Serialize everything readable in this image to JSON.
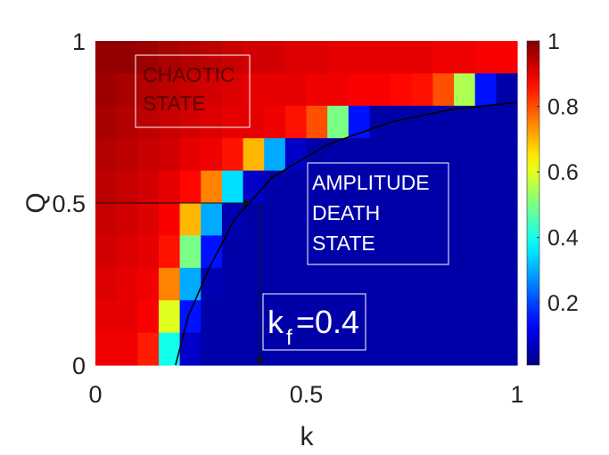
{
  "chart_data": {
    "type": "heatmap",
    "x_label": "k",
    "y_label": "Q",
    "xlim": [
      0,
      1
    ],
    "ylim": [
      0,
      1
    ],
    "xticks": [
      0,
      0.5,
      1
    ],
    "yticks": [
      0,
      0.5,
      1
    ],
    "zlim": [
      0.01,
      1
    ],
    "colorbar_ticks": [
      0.2,
      0.4,
      0.6,
      0.8,
      1
    ],
    "colormap": "jet",
    "z": [
      [
        0.98,
        0.98,
        0.97,
        0.96,
        0.95,
        0.94,
        0.93,
        0.92,
        0.92,
        0.91,
        0.91,
        0.9,
        0.9,
        0.9,
        0.9,
        0.9,
        0.89,
        0.89,
        0.88,
        0.88
      ],
      [
        0.97,
        0.96,
        0.95,
        0.94,
        0.93,
        0.92,
        0.91,
        0.9,
        0.9,
        0.9,
        0.89,
        0.89,
        0.88,
        0.88,
        0.87,
        0.86,
        0.8,
        0.55,
        0.15,
        0.05
      ],
      [
        0.96,
        0.95,
        0.94,
        0.93,
        0.92,
        0.91,
        0.9,
        0.9,
        0.89,
        0.86,
        0.8,
        0.5,
        0.15,
        0.05,
        0.05,
        0.05,
        0.05,
        0.05,
        0.05,
        0.05
      ],
      [
        0.95,
        0.94,
        0.93,
        0.92,
        0.9,
        0.89,
        0.86,
        0.7,
        0.3,
        0.08,
        0.05,
        0.05,
        0.05,
        0.05,
        0.05,
        0.05,
        0.05,
        0.05,
        0.05,
        0.05
      ],
      [
        0.94,
        0.93,
        0.92,
        0.9,
        0.87,
        0.75,
        0.35,
        0.08,
        0.05,
        0.05,
        0.05,
        0.05,
        0.05,
        0.05,
        0.05,
        0.05,
        0.05,
        0.05,
        0.05,
        0.05
      ],
      [
        0.93,
        0.92,
        0.91,
        0.88,
        0.7,
        0.3,
        0.06,
        0.05,
        0.05,
        0.05,
        0.05,
        0.05,
        0.05,
        0.05,
        0.05,
        0.05,
        0.05,
        0.05,
        0.05,
        0.05
      ],
      [
        0.92,
        0.91,
        0.9,
        0.86,
        0.5,
        0.15,
        0.05,
        0.05,
        0.05,
        0.05,
        0.05,
        0.05,
        0.05,
        0.05,
        0.05,
        0.05,
        0.05,
        0.05,
        0.05,
        0.05
      ],
      [
        0.91,
        0.9,
        0.89,
        0.75,
        0.3,
        0.06,
        0.05,
        0.05,
        0.05,
        0.05,
        0.05,
        0.05,
        0.05,
        0.05,
        0.05,
        0.05,
        0.05,
        0.05,
        0.05,
        0.05
      ],
      [
        0.9,
        0.9,
        0.88,
        0.6,
        0.15,
        0.05,
        0.05,
        0.05,
        0.05,
        0.05,
        0.05,
        0.05,
        0.05,
        0.05,
        0.05,
        0.05,
        0.05,
        0.05,
        0.05,
        0.05
      ],
      [
        0.89,
        0.89,
        0.85,
        0.4,
        0.08,
        0.05,
        0.05,
        0.05,
        0.05,
        0.05,
        0.05,
        0.05,
        0.05,
        0.05,
        0.05,
        0.05,
        0.05,
        0.05,
        0.05,
        0.05
      ]
    ],
    "boundary_curve": {
      "x": [
        0.19,
        0.22,
        0.27,
        0.33,
        0.42,
        0.55,
        0.7,
        0.85,
        1
      ],
      "y": [
        0,
        0.15,
        0.3,
        0.45,
        0.58,
        0.68,
        0.75,
        0.79,
        0.81
      ]
    },
    "arrows": [
      {
        "x": [
          0,
          0.37
        ],
        "y": [
          0.5,
          0.5
        ]
      },
      {
        "x": [
          0.39,
          0.39
        ],
        "y": [
          0.5,
          0
        ]
      }
    ],
    "annotations": {
      "chaotic": [
        "CHAOTIC",
        "STATE"
      ],
      "amplitude_death": [
        "AMPLITUDE",
        "DEATH",
        "STATE"
      ],
      "kf": {
        "k": "k",
        "sub": "f",
        "rest": "=0.4"
      }
    }
  }
}
